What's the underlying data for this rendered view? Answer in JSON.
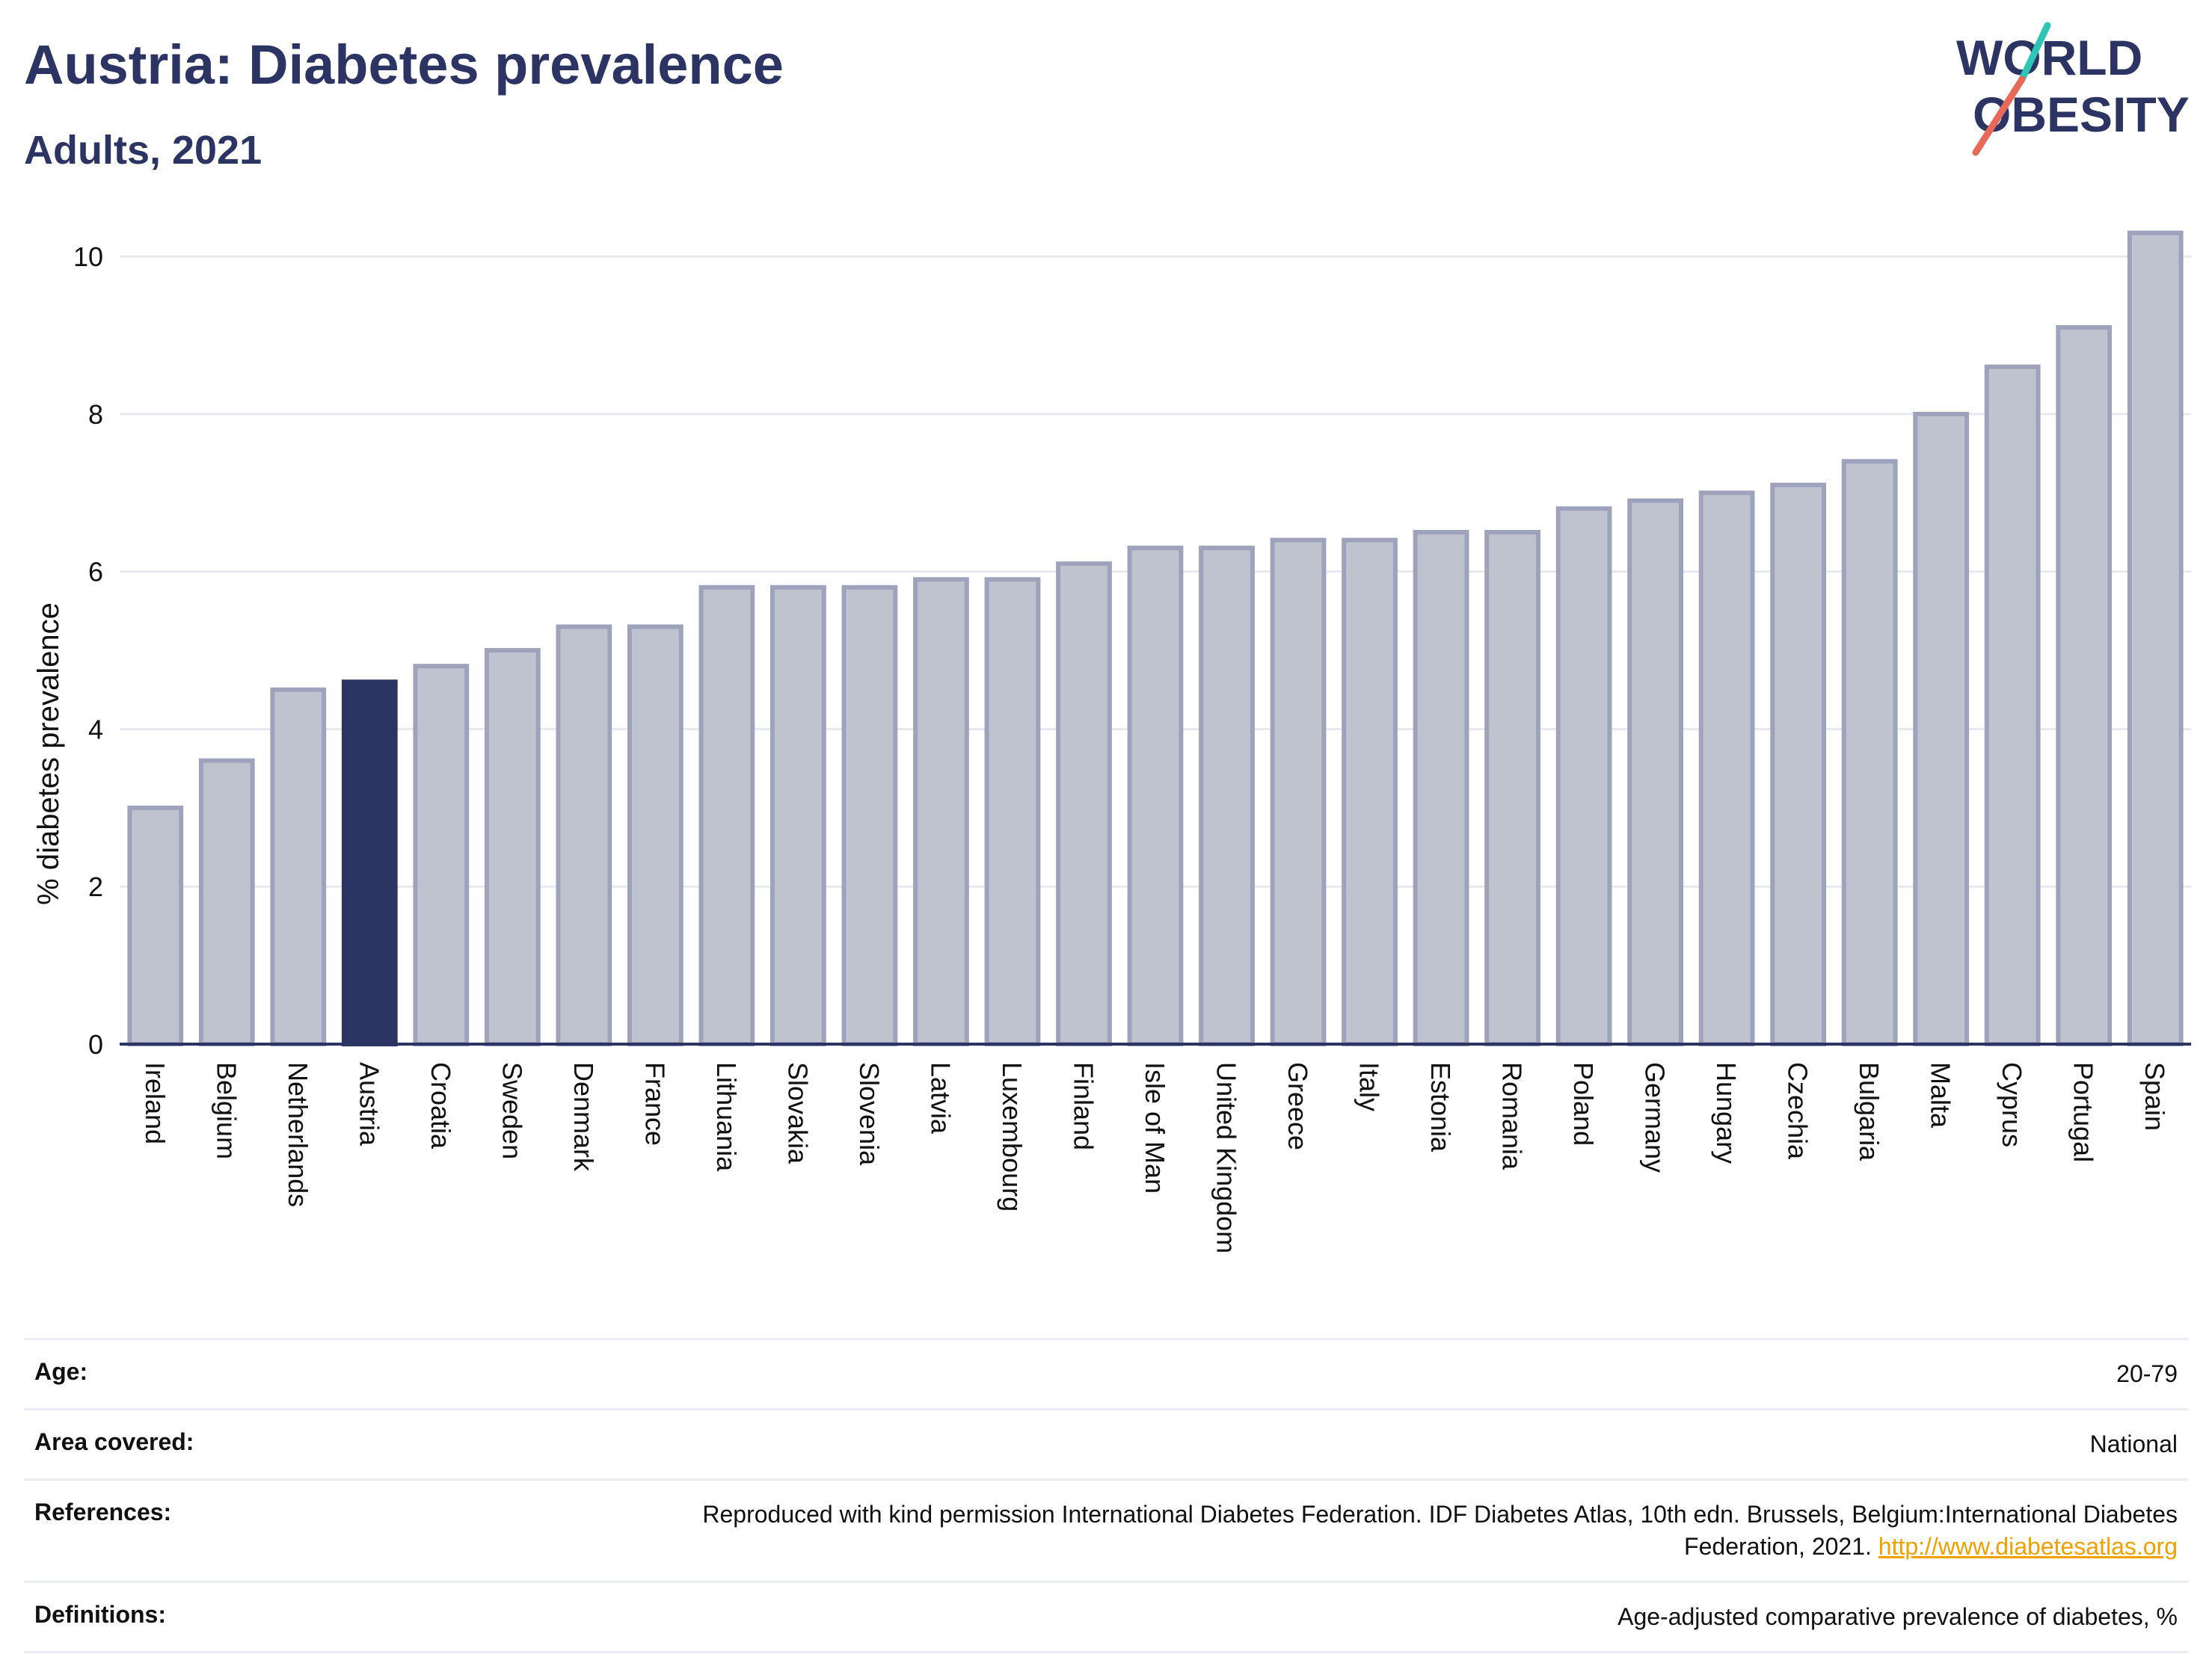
{
  "header": {
    "title": "Austria: Diabetes prevalence",
    "subtitle": "Adults, 2021"
  },
  "logo": {
    "line1": "WORLD",
    "line2": "OBESITY",
    "colors": {
      "text": "#2b3462",
      "slash_top": "#2ec4b6",
      "slash_bottom": "#e8685a"
    }
  },
  "chart_data": {
    "type": "bar",
    "title": "Austria: Diabetes prevalence",
    "subtitle": "Adults, 2021",
    "xlabel": "",
    "ylabel": "% diabetes prevalence",
    "ylim": [
      0,
      10.6
    ],
    "yticks": [
      0,
      2,
      4,
      6,
      8,
      10
    ],
    "grid": true,
    "categories": [
      "Ireland",
      "Belgium",
      "Netherlands",
      "Austria",
      "Croatia",
      "Sweden",
      "Denmark",
      "France",
      "Lithuania",
      "Slovakia",
      "Slovenia",
      "Latvia",
      "Luxembourg",
      "Finland",
      "Isle of Man",
      "United Kingdom",
      "Greece",
      "Italy",
      "Estonia",
      "Romania",
      "Poland",
      "Germany",
      "Hungary",
      "Czechia",
      "Bulgaria",
      "Malta",
      "Cyprus",
      "Portugal",
      "Spain"
    ],
    "values": [
      3.0,
      3.6,
      4.5,
      4.6,
      4.8,
      5.0,
      5.3,
      5.3,
      5.8,
      5.8,
      5.8,
      5.9,
      5.9,
      6.1,
      6.3,
      6.3,
      6.4,
      6.4,
      6.5,
      6.5,
      6.8,
      6.9,
      7.0,
      7.1,
      7.4,
      8.0,
      8.6,
      9.1,
      10.3
    ],
    "highlight": "Austria",
    "colors": {
      "bar_fill": "#bfc2cf",
      "bar_stroke": "#9ea3bb",
      "highlight_fill": "#2b3462",
      "grid": "#e8e9ef",
      "axis": "#2b3462"
    }
  },
  "metadata": {
    "rows": [
      {
        "label": "Age:",
        "value": "20-79",
        "link": ""
      },
      {
        "label": "Area covered:",
        "value": "National",
        "link": ""
      },
      {
        "label": "References:",
        "value": "Reproduced with kind permission International Diabetes Federation.  IDF Diabetes Atlas, 10th edn. Brussels, Belgium:International Diabetes Federation, 2021.",
        "link": "http://www.diabetesatlas.org"
      },
      {
        "label": "Definitions:",
        "value": "Age-adjusted comparative prevalence of diabetes, %",
        "link": ""
      }
    ]
  }
}
